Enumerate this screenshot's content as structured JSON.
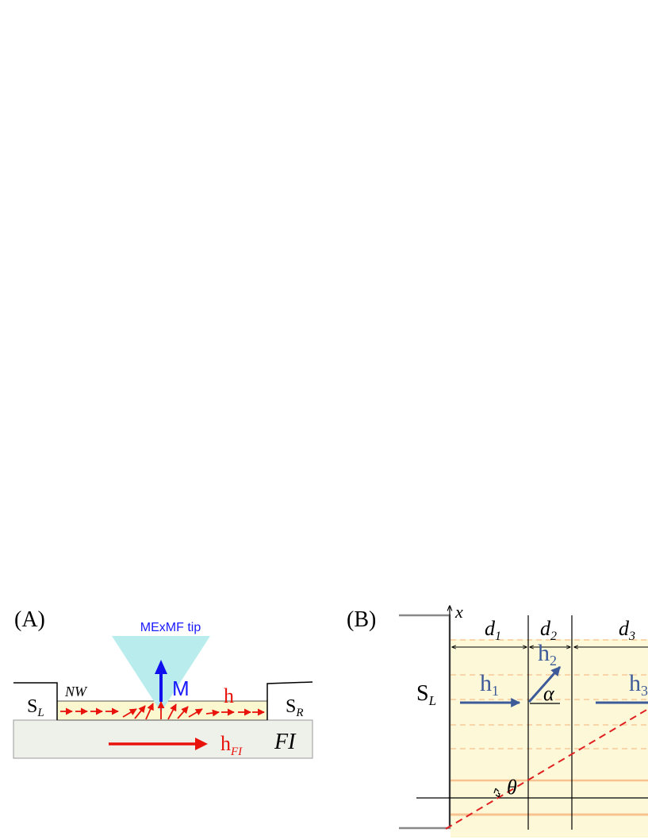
{
  "panel_a": {
    "label": "(A)",
    "tip_label": "MExMF tip",
    "m_label": "M",
    "sl_main": "S",
    "sl_sub": "L",
    "sr_main": "S",
    "sr_sub": "R",
    "nw_label": "NW",
    "h_label": "h",
    "hfi_main": "h",
    "hfi_sub": "FI",
    "fi_label": "FI",
    "colors": {
      "field_arrows": "#e8140c",
      "tip_cone": "#b9ecec",
      "m_arrow": "#1010ee",
      "nanowire_fill": "#fbf8cf",
      "fi_fill": "#eef0ea"
    }
  },
  "panel_b": {
    "label": "(B)",
    "axis_label": "x",
    "sl_main": "S",
    "sl_sub": "L",
    "d1_main": "d",
    "d1_sub": "1",
    "d2_main": "d",
    "d2_sub": "2",
    "d3_main": "d",
    "d3_sub": "3",
    "h1_main": "h",
    "h1_sub": "1",
    "h2_main": "h",
    "h2_sub": "2",
    "h3_main": "h",
    "h3_sub": "3",
    "alpha_label": "α",
    "theta_label": "θ",
    "colors": {
      "region_fill": "#fdf9d8",
      "vector_color": "#3d5a99",
      "dashed_line": "#e02020",
      "stripe_color": "#f7c28f"
    }
  }
}
